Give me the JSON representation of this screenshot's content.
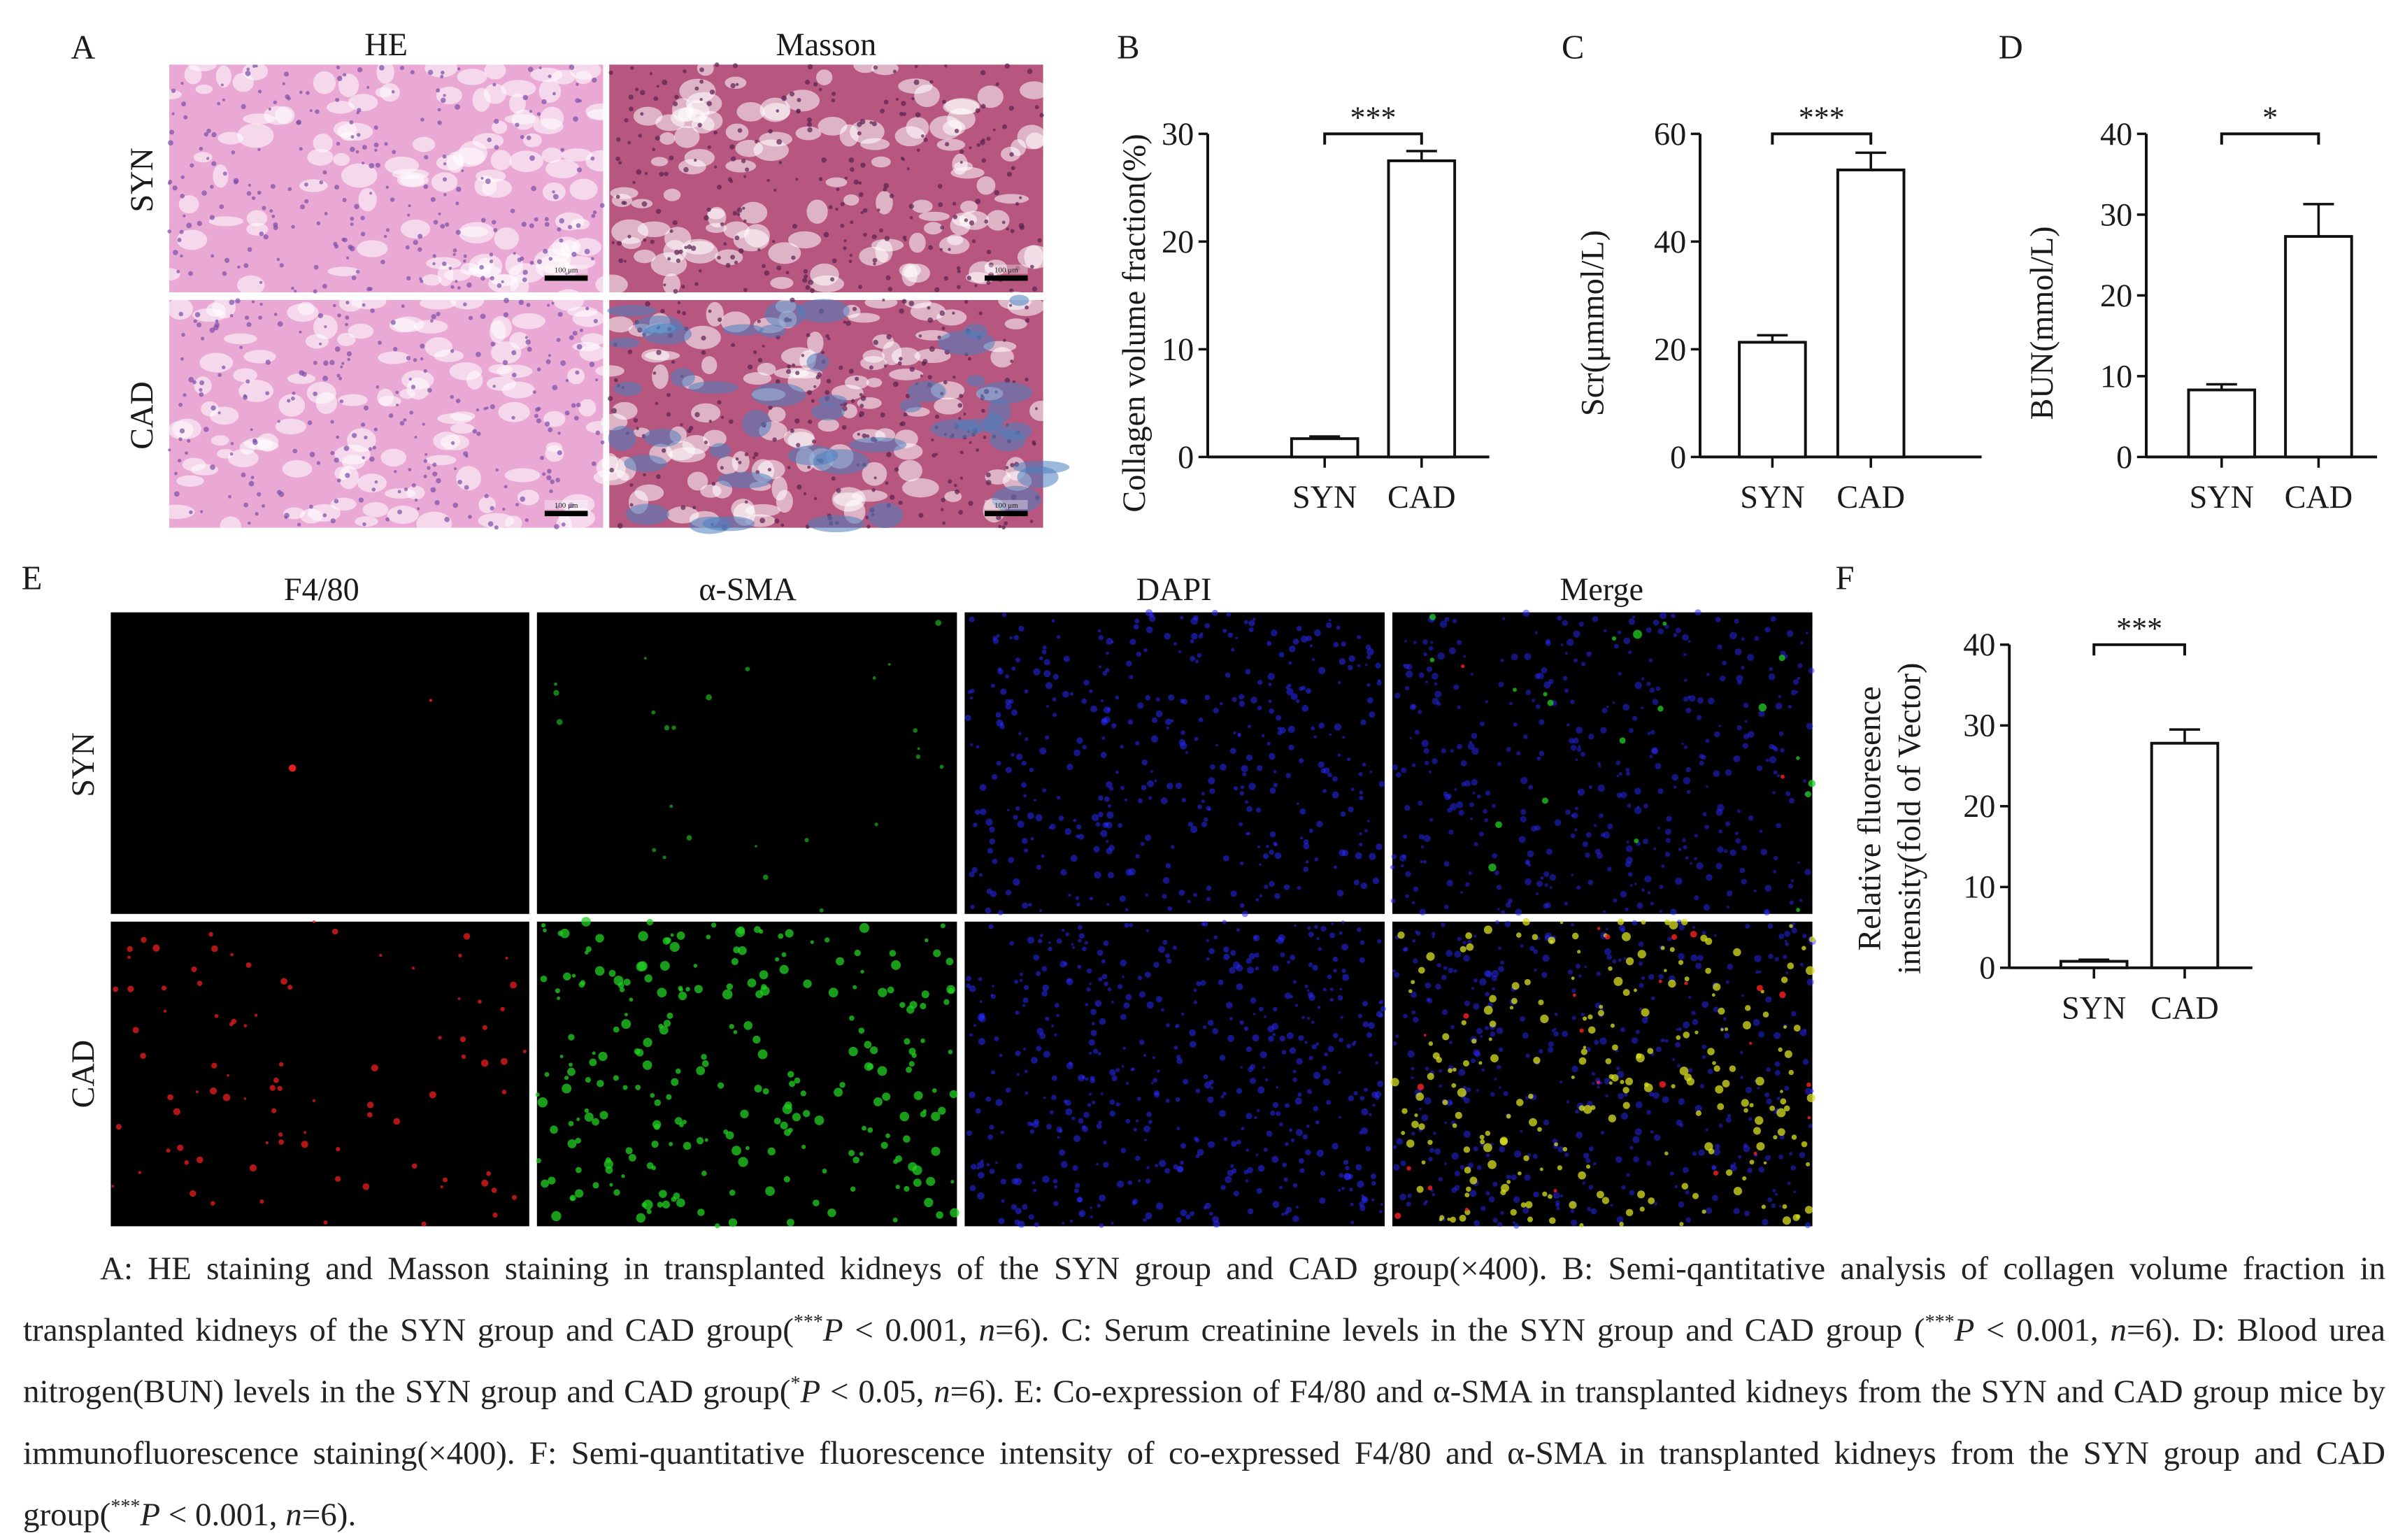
{
  "panel_labels": {
    "a": "A",
    "b": "B",
    "c": "C",
    "d": "D",
    "e": "E",
    "f": "F"
  },
  "panel_a": {
    "columns": [
      "HE",
      "Masson"
    ],
    "rows": [
      "SYN",
      "CAD"
    ],
    "scale_bar_text": "100 μm",
    "colors": {
      "he_bg": "#e9a9d4",
      "he_nuclei": "#7a4ea6",
      "masson_bg": "#b7577f",
      "masson_fiber": "#4a7fc0"
    }
  },
  "panel_e": {
    "columns": [
      "F4/80",
      "α-SMA",
      "DAPI",
      "Merge"
    ],
    "rows": [
      "SYN",
      "CAD"
    ],
    "colors": {
      "f480": "#ff2020",
      "asma": "#22d022",
      "dapi": "#2a2aff",
      "merge": "#d8e020"
    }
  },
  "chart_data": [
    {
      "id": "B",
      "type": "bar",
      "categories": [
        "SYN",
        "CAD"
      ],
      "values": [
        1.7,
        27.5
      ],
      "errors": [
        0.2,
        0.9
      ],
      "ylabel": "Collagen volume fraction(%)",
      "ylim": [
        0,
        30
      ],
      "yticks": [
        0,
        10,
        20,
        30
      ],
      "significance": "***",
      "grid": false
    },
    {
      "id": "C",
      "type": "bar",
      "categories": [
        "SYN",
        "CAD"
      ],
      "values": [
        21.3,
        53.3
      ],
      "errors": [
        1.3,
        3.2
      ],
      "ylabel": "Scr(μmmol/L)",
      "ylim": [
        0,
        60
      ],
      "yticks": [
        0,
        20,
        40,
        60
      ],
      "significance": "***",
      "grid": false
    },
    {
      "id": "D",
      "type": "bar",
      "categories": [
        "SYN",
        "CAD"
      ],
      "values": [
        8.3,
        27.3
      ],
      "errors": [
        0.7,
        4.0
      ],
      "ylabel": "BUN(mmol/L)",
      "ylim": [
        0,
        40
      ],
      "yticks": [
        0,
        10,
        20,
        30,
        40
      ],
      "significance": "*",
      "grid": false
    },
    {
      "id": "F",
      "type": "bar",
      "categories": [
        "SYN",
        "CAD"
      ],
      "values": [
        0.8,
        27.8
      ],
      "errors": [
        0.2,
        1.7
      ],
      "ylabel": [
        "Relative fluoresence",
        "intensity(fold of Vector)"
      ],
      "ylim": [
        0,
        40
      ],
      "yticks": [
        0,
        10,
        20,
        30,
        40
      ],
      "significance": "***",
      "grid": false
    }
  ],
  "caption": [
    {
      "t": "A: HE staining and Masson staining in transplanted kidneys of the SYN group and CAD group(×400). B: Semi-qantitative analysis of collagen volume fraction in transplanted kidneys of the SYN group and CAD group("
    },
    {
      "t": "***",
      "s": "sup"
    },
    {
      "t": "P",
      "s": "it"
    },
    {
      "t": " < 0.001, "
    },
    {
      "t": "n",
      "s": "it"
    },
    {
      "t": "=6). C: Serum creatinine levels in the SYN group and CAD group ("
    },
    {
      "t": "***",
      "s": "sup"
    },
    {
      "t": "P",
      "s": "it"
    },
    {
      "t": " < 0.001, "
    },
    {
      "t": "n",
      "s": "it"
    },
    {
      "t": "=6). D: Blood urea nitrogen(BUN) levels in the SYN group and CAD group("
    },
    {
      "t": "*",
      "s": "sup"
    },
    {
      "t": "P",
      "s": "it"
    },
    {
      "t": " < 0.05, "
    },
    {
      "t": "n",
      "s": "it"
    },
    {
      "t": "=6). E: Co-expression of F4/80 and α-SMA in transplanted kidneys from the SYN and CAD group mice by immunofluorescence staining(×400). F: Semi-quantitative fluorescence intensity of co-expressed F4/80 and α-SMA in transplanted kidneys from the SYN group and CAD group("
    },
    {
      "t": "***",
      "s": "sup"
    },
    {
      "t": "P",
      "s": "it"
    },
    {
      "t": " < 0.001, "
    },
    {
      "t": "n",
      "s": "it"
    },
    {
      "t": "=6)."
    }
  ]
}
